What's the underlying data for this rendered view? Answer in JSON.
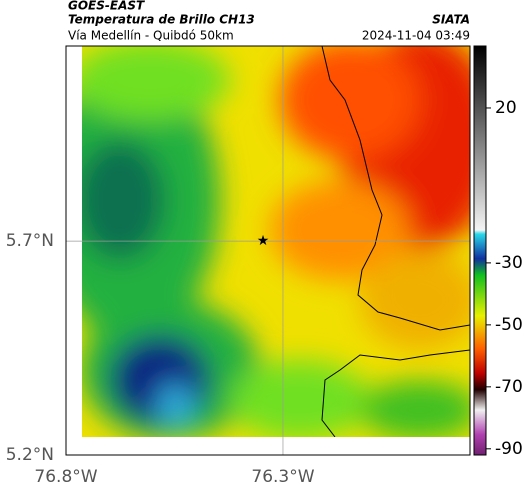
{
  "header": {
    "product": "GOES-EAST",
    "title": "Temperatura de Brillo CH13",
    "agency": "SIATA",
    "route": "Vía Medellín - Quibdó 50km",
    "datetime": "2024-11-04 03:49"
  },
  "map": {
    "xlim": [
      -76.8,
      -75.869
    ],
    "ylim": [
      5.2,
      6.156
    ],
    "xticks": [
      {
        "value": -76.8,
        "label": "76.8°W"
      },
      {
        "value": -76.3,
        "label": "76.3°W"
      }
    ],
    "yticks": [
      {
        "value": 5.2,
        "label": "5.2°N"
      },
      {
        "value": 5.7,
        "label": "5.7°N"
      }
    ],
    "grid": true
  },
  "colorbar": {
    "lim": [
      40,
      -92
    ],
    "ticks": [
      20,
      -30,
      -50,
      -70,
      -90
    ]
  }
}
